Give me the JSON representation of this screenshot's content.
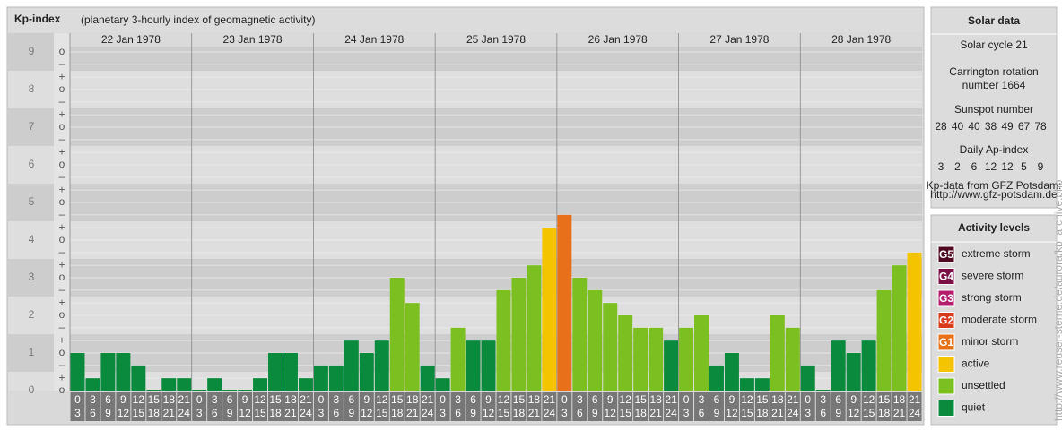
{
  "chart_data": {
    "type": "bar",
    "title": "Kp-index",
    "subtitle": "(planetary 3-hourly index of geomagnetic activity)",
    "days": [
      "22 Jan 1978",
      "23 Jan 1978",
      "24 Jan 1978",
      "25 Jan 1978",
      "26 Jan 1978",
      "27 Jan 1978",
      "28 Jan 1978"
    ],
    "slot_hours": [
      0,
      3,
      6,
      9,
      12,
      15,
      18,
      21,
      24
    ],
    "values": [
      1,
      0.33,
      1,
      1,
      0.67,
      0,
      0.33,
      0.33,
      0,
      0.33,
      0,
      0,
      0.33,
      1,
      1,
      0.33,
      0.67,
      0.67,
      1.33,
      1,
      1.33,
      3,
      2.33,
      0.67,
      0.33,
      1.67,
      1.33,
      1.33,
      2.67,
      3,
      3.33,
      4.33,
      4.67,
      3,
      2.67,
      2.33,
      2,
      1.67,
      1.67,
      1.33,
      1.67,
      2,
      0.67,
      1,
      0.33,
      0.33,
      2,
      1.67,
      0.67,
      0,
      1.33,
      1,
      1.33,
      2.67,
      3.33,
      3.67
    ],
    "colors": [
      "#0a8a3c",
      "#0a8a3c",
      "#0a8a3c",
      "#0a8a3c",
      "#0a8a3c",
      "#0a8a3c",
      "#0a8a3c",
      "#0a8a3c",
      "#0a8a3c",
      "#0a8a3c",
      "#0a8a3c",
      "#0a8a3c",
      "#0a8a3c",
      "#0a8a3c",
      "#0a8a3c",
      "#0a8a3c",
      "#0a8a3c",
      "#0a8a3c",
      "#0a8a3c",
      "#0a8a3c",
      "#0a8a3c",
      "#7cbf20",
      "#7cbf20",
      "#0a8a3c",
      "#0a8a3c",
      "#7cbf20",
      "#0a8a3c",
      "#0a8a3c",
      "#7cbf20",
      "#7cbf20",
      "#7cbf20",
      "#f5c400",
      "#e8701a",
      "#7cbf20",
      "#7cbf20",
      "#7cbf20",
      "#7cbf20",
      "#7cbf20",
      "#7cbf20",
      "#0a8a3c",
      "#7cbf20",
      "#7cbf20",
      "#0a8a3c",
      "#0a8a3c",
      "#0a8a3c",
      "#0a8a3c",
      "#7cbf20",
      "#7cbf20",
      "#0a8a3c",
      "#0a8a3c",
      "#0a8a3c",
      "#0a8a3c",
      "#0a8a3c",
      "#7cbf20",
      "#7cbf20",
      "#f5c400"
    ],
    "ylim": [
      0,
      9.5
    ],
    "yticks": [
      0,
      1,
      2,
      3,
      4,
      5,
      6,
      7,
      8,
      9
    ],
    "minor_yticks": [
      {
        "value": 0,
        "label": "o"
      },
      {
        "value": 0.33,
        "label": "+"
      },
      {
        "value": 0.67,
        "label": "–"
      },
      {
        "value": 1,
        "label": "o"
      },
      {
        "value": 1.33,
        "label": "+"
      },
      {
        "value": 1.67,
        "label": "–"
      },
      {
        "value": 2,
        "label": "o"
      },
      {
        "value": 2.33,
        "label": "+"
      },
      {
        "value": 2.67,
        "label": "–"
      },
      {
        "value": 3,
        "label": "o"
      },
      {
        "value": 3.33,
        "label": "+"
      },
      {
        "value": 3.67,
        "label": "–"
      },
      {
        "value": 4,
        "label": "o"
      },
      {
        "value": 4.33,
        "label": "+"
      },
      {
        "value": 4.67,
        "label": "–"
      },
      {
        "value": 5,
        "label": "o"
      },
      {
        "value": 5.33,
        "label": "+"
      },
      {
        "value": 5.67,
        "label": "–"
      },
      {
        "value": 6,
        "label": "o"
      },
      {
        "value": 6.33,
        "label": "+"
      },
      {
        "value": 6.67,
        "label": "–"
      },
      {
        "value": 7,
        "label": "o"
      },
      {
        "value": 7.33,
        "label": "+"
      },
      {
        "value": 7.67,
        "label": "–"
      },
      {
        "value": 8,
        "label": "o"
      },
      {
        "value": 8.33,
        "label": "+"
      },
      {
        "value": 8.67,
        "label": "–"
      },
      {
        "value": 9,
        "label": "o"
      }
    ],
    "solar_data": {
      "title": "Solar data",
      "cycle": "Solar cycle 21",
      "carrington": "Carrington rotation number 1664",
      "sunspot_title": "Sunspot number",
      "sunspot": [
        28,
        40,
        40,
        38,
        49,
        67,
        78
      ],
      "ap_title": "Daily Ap-index",
      "ap": [
        3,
        2,
        6,
        12,
        12,
        5,
        9
      ],
      "source": "Kp-data from GFZ Potsdam:",
      "source_url": "http://www.gfz-potsdam.de"
    },
    "activity_levels": {
      "title": "Activity levels",
      "items": [
        {
          "code": "G5",
          "name": "extreme storm",
          "color": "#4d0a22"
        },
        {
          "code": "G4",
          "name": "severe storm",
          "color": "#7a1045"
        },
        {
          "code": "G3",
          "name": "strong storm",
          "color": "#b21d6c"
        },
        {
          "code": "G2",
          "name": "moderate storm",
          "color": "#d93b1c"
        },
        {
          "code": "G1",
          "name": "minor storm",
          "color": "#e8701a"
        },
        {
          "code": null,
          "name": "active",
          "color": "#f5c400"
        },
        {
          "code": null,
          "name": "unsettled",
          "color": "#7cbf20"
        },
        {
          "code": null,
          "name": "quiet",
          "color": "#0a8a3c"
        }
      ]
    },
    "credit": "http://www.reuser-sterne.de/aurora/kp_archive.php"
  }
}
